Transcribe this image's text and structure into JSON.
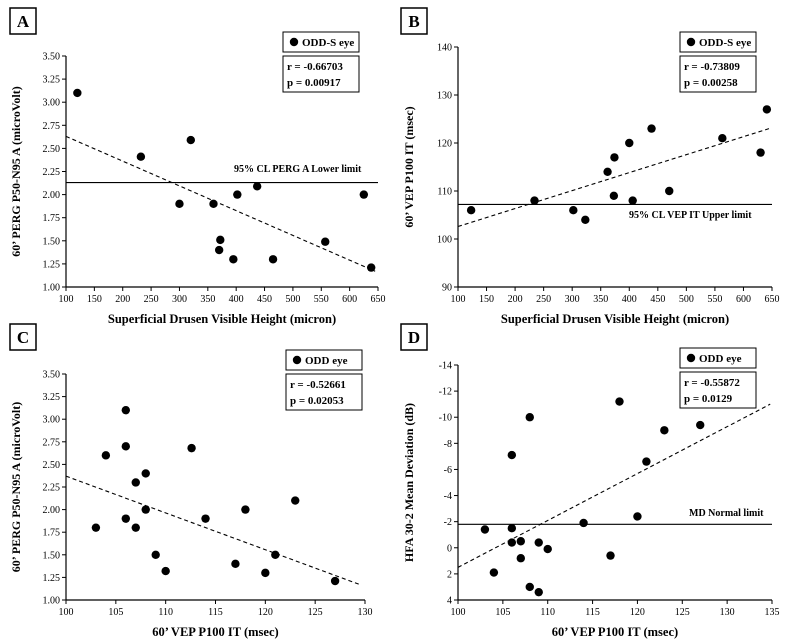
{
  "chart_data": [
    {
      "type": "scatter",
      "panel_label": "A",
      "xlabel": "Superficial Drusen Visible Height (micron)",
      "ylabel": "60’ PERG P50-N95 A (microVolt)",
      "xlim": [
        100,
        650
      ],
      "ylim": [
        1.0,
        3.5
      ],
      "x_ticks": [
        "100",
        "150",
        "200",
        "250",
        "300",
        "350",
        "400",
        "450",
        "500",
        "550",
        "600",
        "650"
      ],
      "y_ticks": [
        "1.00",
        "1.25",
        "1.50",
        "1.75",
        "2.00",
        "2.25",
        "2.50",
        "2.75",
        "3.00",
        "3.25",
        "3.50"
      ],
      "legend": "ODD-S eye",
      "stats": [
        "r = -0.66703",
        "p = 0.00917"
      ],
      "points": [
        [
          120,
          3.1
        ],
        [
          232,
          2.41
        ],
        [
          300,
          1.9
        ],
        [
          320,
          2.59
        ],
        [
          360,
          1.9
        ],
        [
          370,
          1.4
        ],
        [
          372,
          1.51
        ],
        [
          395,
          1.3
        ],
        [
          402,
          2.0
        ],
        [
          437,
          2.09
        ],
        [
          465,
          1.3
        ],
        [
          557,
          1.49
        ],
        [
          625,
          2.0
        ],
        [
          638,
          1.21
        ]
      ],
      "fit_line": [
        [
          100,
          2.63
        ],
        [
          645,
          1.17
        ]
      ],
      "ref_line": {
        "y": 2.13,
        "label": "95% CL PERG A Lower limit"
      }
    },
    {
      "type": "scatter",
      "panel_label": "B",
      "xlabel": "Superficial Drusen Visible Height (micron)",
      "ylabel": "60’ VEP P100 IT (msec)",
      "xlim": [
        100,
        650
      ],
      "ylim": [
        90,
        140
      ],
      "x_ticks": [
        "100",
        "150",
        "200",
        "250",
        "300",
        "350",
        "400",
        "450",
        "500",
        "550",
        "600",
        "650"
      ],
      "y_ticks": [
        "90",
        "100",
        "110",
        "120",
        "130",
        "140"
      ],
      "legend": "ODD-S eye",
      "stats": [
        "r = -0.73809",
        "p = 0.00258"
      ],
      "points": [
        [
          123,
          106
        ],
        [
          234,
          108
        ],
        [
          302,
          106
        ],
        [
          323,
          104
        ],
        [
          362,
          114
        ],
        [
          373,
          109
        ],
        [
          374,
          117
        ],
        [
          400,
          120
        ],
        [
          406,
          108
        ],
        [
          439,
          123
        ],
        [
          470,
          110
        ],
        [
          563,
          121
        ],
        [
          630,
          118
        ],
        [
          641,
          127
        ]
      ],
      "fit_line": [
        [
          100,
          102.6
        ],
        [
          645,
          123
        ]
      ],
      "ref_line": {
        "y": 107.2,
        "label": "95% CL VEP IT Upper limit"
      }
    },
    {
      "type": "scatter",
      "panel_label": "C",
      "xlabel": "60’ VEP P100 IT (msec)",
      "ylabel": "60’ PERG P50-N95 A (microVolt)",
      "xlim": [
        100,
        130
      ],
      "ylim": [
        1.0,
        3.5
      ],
      "x_ticks": [
        "100",
        "105",
        "110",
        "115",
        "120",
        "125",
        "130"
      ],
      "y_ticks": [
        "1.00",
        "1.25",
        "1.50",
        "1.75",
        "2.00",
        "2.25",
        "2.50",
        "2.75",
        "3.00",
        "3.25",
        "3.50"
      ],
      "legend": "ODD eye",
      "stats": [
        "r = -0.52661",
        "p = 0.02053"
      ],
      "points": [
        [
          103,
          1.8
        ],
        [
          104,
          2.6
        ],
        [
          106,
          3.1
        ],
        [
          106,
          2.7
        ],
        [
          106,
          1.9
        ],
        [
          107,
          2.3
        ],
        [
          107,
          1.8
        ],
        [
          108,
          2.4
        ],
        [
          108,
          2.0
        ],
        [
          109,
          1.5
        ],
        [
          110,
          1.32
        ],
        [
          112.6,
          2.68
        ],
        [
          114,
          1.9
        ],
        [
          117,
          1.4
        ],
        [
          118,
          2.0
        ],
        [
          120,
          1.3
        ],
        [
          121,
          1.5
        ],
        [
          123,
          2.1
        ],
        [
          127,
          1.21
        ]
      ],
      "fit_line": [
        [
          100,
          2.37
        ],
        [
          129.5,
          1.17
        ]
      ]
    },
    {
      "type": "scatter",
      "panel_label": "D",
      "xlabel": "60’ VEP P100 IT (msec)",
      "ylabel": "HFA 30-2 Mean Deviation (dB)",
      "xlim": [
        100,
        135
      ],
      "ylim": [
        4,
        -14
      ],
      "x_ticks": [
        "100",
        "105",
        "110",
        "115",
        "120",
        "125",
        "130",
        "135"
      ],
      "y_ticks": [
        "4",
        "2",
        "0",
        "-2",
        "-4",
        "-6",
        "-8",
        "-10",
        "-12",
        "-14"
      ],
      "legend": "ODD eye",
      "stats": [
        "r = -0.55872",
        "p = 0.0129"
      ],
      "points": [
        [
          103,
          -1.4
        ],
        [
          104,
          1.9
        ],
        [
          106,
          -7.1
        ],
        [
          106,
          -1.5
        ],
        [
          106,
          -0.4
        ],
        [
          107,
          -0.5
        ],
        [
          107,
          0.8
        ],
        [
          108,
          -10.0
        ],
        [
          108,
          3.0
        ],
        [
          109,
          -0.4
        ],
        [
          109,
          3.4
        ],
        [
          110,
          0.1
        ],
        [
          114,
          -1.9
        ],
        [
          117,
          0.6
        ],
        [
          118,
          -11.2
        ],
        [
          120,
          -2.4
        ],
        [
          121,
          -6.6
        ],
        [
          123,
          -9.0
        ],
        [
          127,
          -9.4
        ]
      ],
      "fit_line": [
        [
          100,
          1.5
        ],
        [
          134.8,
          -11.0
        ]
      ],
      "ref_line": {
        "y": -1.8,
        "label": "MD Normal limit"
      }
    }
  ]
}
